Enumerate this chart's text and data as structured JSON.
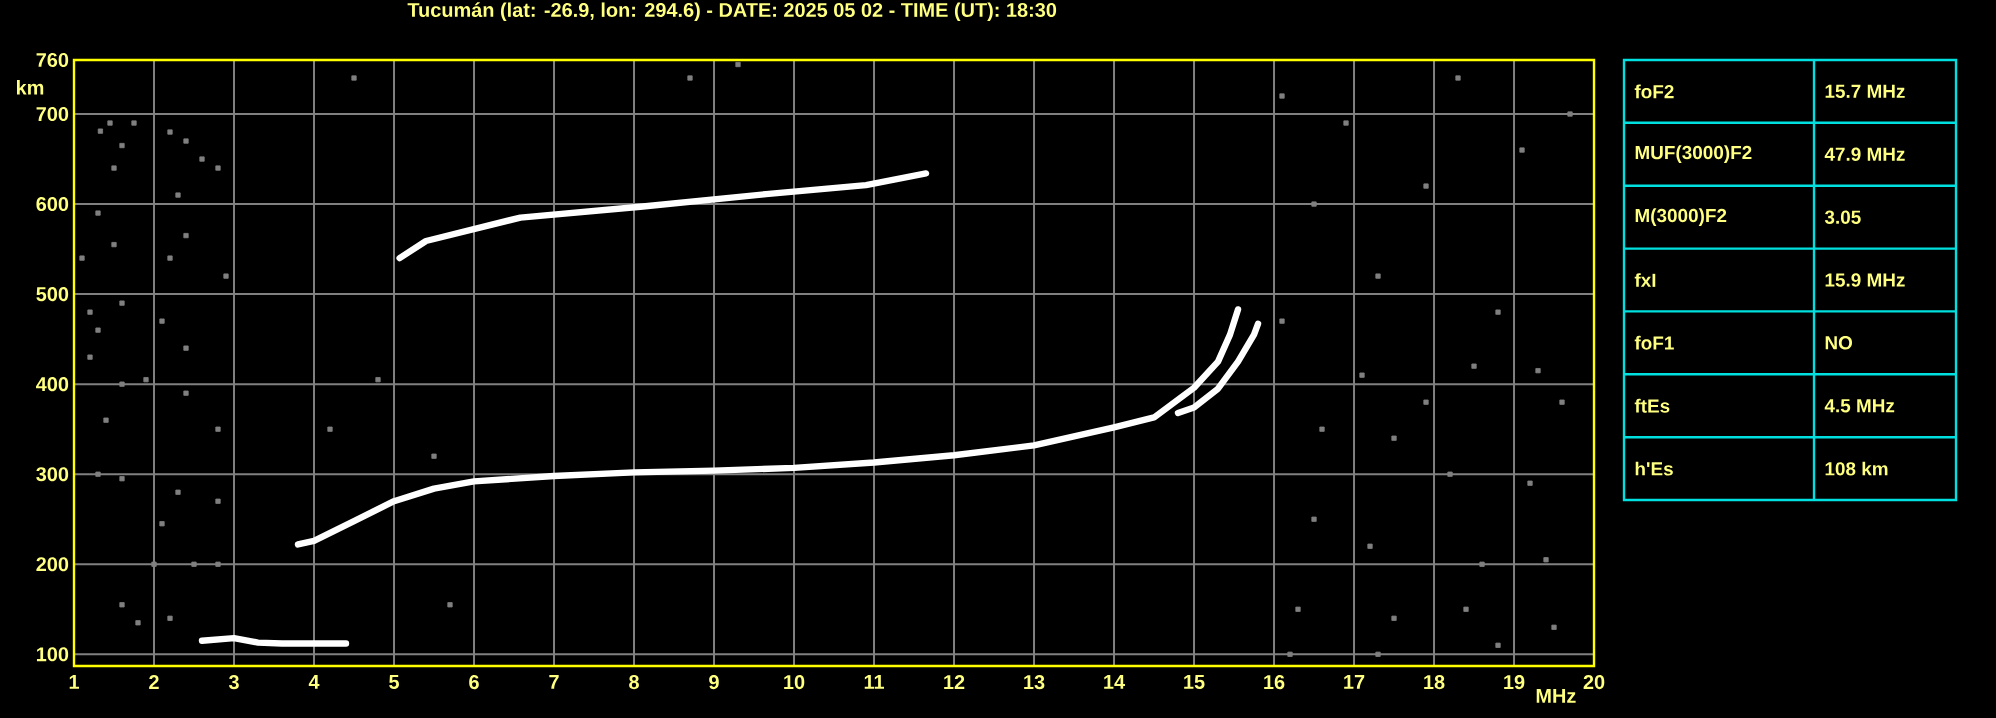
{
  "chart_data": [
    {
      "type": "line",
      "title": "Tucumán (lat: -26.9, lon: 294.6) - DATE: 2025 05 02 - TIME (UT): 18:30",
      "xlabel": "MHz",
      "ylabel": "km",
      "xlim": [
        1,
        20
      ],
      "ylim": [
        87,
        760
      ],
      "xticks": [
        1,
        2,
        3,
        4,
        5,
        6,
        7,
        8,
        9,
        10,
        11,
        12,
        13,
        14,
        15,
        16,
        17,
        18,
        19,
        20
      ],
      "yticks": [
        100,
        200,
        300,
        400,
        500,
        600,
        700,
        760
      ],
      "grid": true,
      "series": [
        {
          "type": "line",
          "color": "#ffffff",
          "x": [
            2.6,
            3.0,
            3.3,
            3.6,
            4.0,
            4.4
          ],
          "values": [
            115,
            118,
            113,
            112,
            112,
            112
          ]
        },
        {
          "type": "line",
          "color": "#ffffff",
          "x": [
            3.8,
            4.0,
            4.5,
            5.0,
            5.5,
            6.0,
            7.0,
            8.0,
            9.0,
            10.0,
            11.0,
            12.0,
            13.0,
            14.0,
            14.5,
            15.0,
            15.3,
            15.45,
            15.55
          ],
          "values": [
            222,
            226,
            248,
            270,
            284,
            292,
            298,
            302,
            304,
            307,
            313,
            321,
            332,
            352,
            363,
            396,
            425,
            455,
            483
          ]
        },
        {
          "type": "line",
          "color": "#ffffff",
          "x": [
            14.8,
            15.0,
            15.3,
            15.55,
            15.75,
            15.8
          ],
          "values": [
            368,
            374,
            395,
            425,
            455,
            467
          ]
        },
        {
          "type": "line",
          "color": "#ffffff",
          "x": [
            5.07,
            5.4,
            6.58,
            8.08,
            9.65,
            10.9,
            11.65
          ],
          "values": [
            540,
            559,
            585,
            597,
            611,
            621,
            634
          ]
        },
        {
          "type": "scatter",
          "marker": "square",
          "color": "#808080",
          "x": [
            1.33,
            1.45,
            1.6,
            1.75,
            1.5,
            2.2,
            2.4,
            2.6,
            2.8,
            2.3,
            1.3,
            1.5,
            1.1,
            2.2,
            2.4,
            2.9,
            1.2,
            1.3,
            1.6,
            2.1,
            2.4,
            1.2,
            1.6,
            1.9,
            2.4,
            2.8,
            1.4,
            1.3,
            1.6,
            2.3,
            2.8,
            2.1,
            2.0,
            2.5,
            2.8,
            1.6,
            1.8,
            2.2,
            4.2,
            4.8,
            5.5,
            5.7,
            16.1,
            16.5,
            17.3,
            16.1,
            17.1,
            17.9,
            18.5,
            19.3,
            16.6,
            17.5,
            18.2,
            19.2,
            16.5,
            17.2,
            18.6,
            19.4,
            16.3,
            17.5,
            18.4,
            19.5,
            16.2,
            17.3,
            18.8,
            19.6,
            18.8,
            17.9,
            19.1,
            16.9,
            18.3,
            19.7,
            8.7,
            4.5,
            9.3
          ],
          "values": [
            681,
            690,
            665,
            690,
            640,
            680,
            670,
            650,
            640,
            610,
            590,
            555,
            540,
            540,
            565,
            520,
            480,
            460,
            490,
            470,
            440,
            430,
            400,
            405,
            390,
            350,
            360,
            300,
            295,
            280,
            270,
            245,
            200,
            200,
            200,
            155,
            135,
            140,
            350,
            405,
            320,
            155,
            720,
            600,
            520,
            470,
            410,
            380,
            420,
            415,
            350,
            340,
            300,
            290,
            250,
            220,
            200,
            205,
            150,
            140,
            150,
            130,
            100,
            100,
            110,
            380,
            480,
            620,
            660,
            690,
            740,
            700,
            740,
            740,
            755
          ]
        }
      ]
    },
    {
      "type": "other",
      "color": "#00e0e0",
      "categories": [
        "foF2",
        "MUF(3000)F2",
        "M(3000)F2",
        "fxI",
        "foF1",
        "ftEs",
        "h'Es"
      ],
      "value_labels": [
        "15.7 MHz",
        "47.9 MHz",
        "3.05",
        "15.9 MHz",
        "NO",
        "4.5 MHz",
        "108 km"
      ]
    }
  ]
}
